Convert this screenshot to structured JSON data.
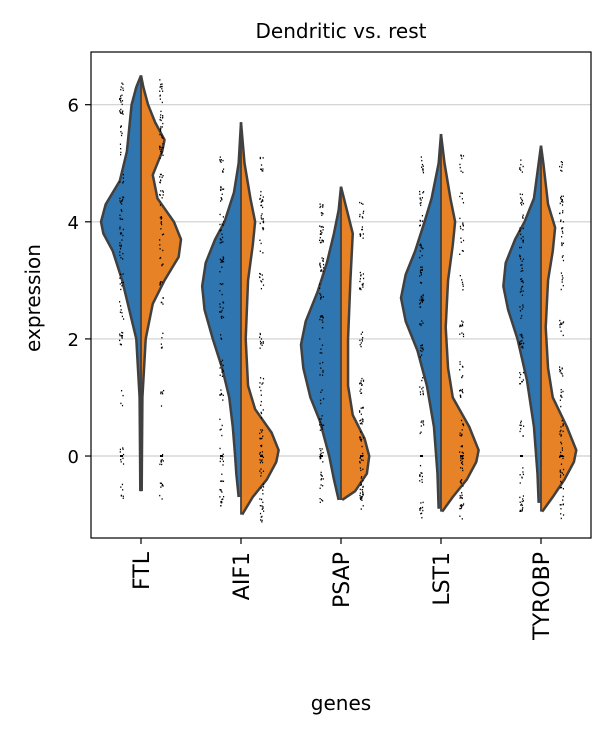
{
  "chart_data": {
    "type": "violin",
    "title": "Dendritic vs. rest",
    "xlabel": "genes",
    "ylabel": "expression",
    "ylim": [
      -1.4,
      6.9
    ],
    "yticks": [
      0,
      2,
      4,
      6
    ],
    "grid": "horizontal",
    "categories": [
      "FTL",
      "AIF1",
      "PSAP",
      "LST1",
      "TYROBP"
    ],
    "series_colors": {
      "Dendritic": "#2f75b0",
      "rest": "#e88227"
    },
    "genes": [
      {
        "name": "FTL",
        "Dendritic": {
          "min": -0.6,
          "max": 6.5,
          "mode": 4.0,
          "modeWidth": 0.17,
          "density": [
            [
              -0.6,
              0.003
            ],
            [
              0,
              0.004
            ],
            [
              1.0,
              0.006
            ],
            [
              2.0,
              0.02
            ],
            [
              2.5,
              0.05
            ],
            [
              3.0,
              0.08
            ],
            [
              3.5,
              0.12
            ],
            [
              3.8,
              0.16
            ],
            [
              4.0,
              0.17
            ],
            [
              4.3,
              0.15
            ],
            [
              4.7,
              0.09
            ],
            [
              5.2,
              0.06
            ],
            [
              5.6,
              0.05
            ],
            [
              6.0,
              0.04
            ],
            [
              6.3,
              0.02
            ],
            [
              6.5,
              0.0
            ]
          ]
        },
        "rest": {
          "min": -0.6,
          "max": 6.5,
          "density": [
            [
              -0.6,
              0.003
            ],
            [
              0,
              0.004
            ],
            [
              1.0,
              0.006
            ],
            [
              2.0,
              0.02
            ],
            [
              2.6,
              0.05
            ],
            [
              3.0,
              0.1
            ],
            [
              3.4,
              0.16
            ],
            [
              3.7,
              0.17
            ],
            [
              4.0,
              0.14
            ],
            [
              4.4,
              0.07
            ],
            [
              4.8,
              0.05
            ],
            [
              5.2,
              0.09
            ],
            [
              5.4,
              0.1
            ],
            [
              5.7,
              0.06
            ],
            [
              6.0,
              0.03
            ],
            [
              6.3,
              0.01
            ],
            [
              6.5,
              0.0
            ]
          ]
        }
      },
      {
        "name": "AIF1",
        "Dendritic": {
          "min": -0.7,
          "max": 5.7,
          "density": [
            [
              -0.7,
              0.01
            ],
            [
              -0.3,
              0.02
            ],
            [
              0,
              0.025
            ],
            [
              0.5,
              0.035
            ],
            [
              1.0,
              0.05
            ],
            [
              1.5,
              0.08
            ],
            [
              2.0,
              0.12
            ],
            [
              2.5,
              0.155
            ],
            [
              2.9,
              0.165
            ],
            [
              3.3,
              0.15
            ],
            [
              3.7,
              0.11
            ],
            [
              4.0,
              0.07
            ],
            [
              4.5,
              0.03
            ],
            [
              5.0,
              0.01
            ],
            [
              5.7,
              0.0
            ]
          ]
        },
        "rest": {
          "min": -1.0,
          "max": 5.7,
          "density": [
            [
              -1.0,
              0.005
            ],
            [
              -0.7,
              0.05
            ],
            [
              -0.4,
              0.11
            ],
            [
              -0.1,
              0.15
            ],
            [
              0.1,
              0.16
            ],
            [
              0.4,
              0.13
            ],
            [
              0.8,
              0.06
            ],
            [
              1.2,
              0.03
            ],
            [
              2.0,
              0.02
            ],
            [
              3.0,
              0.03
            ],
            [
              3.6,
              0.05
            ],
            [
              4.0,
              0.06
            ],
            [
              4.4,
              0.04
            ],
            [
              5.0,
              0.015
            ],
            [
              5.7,
              0.0
            ]
          ]
        }
      },
      {
        "name": "PSAP",
        "Dendritic": {
          "min": -0.75,
          "max": 4.6,
          "density": [
            [
              -0.75,
              0.01
            ],
            [
              -0.4,
              0.03
            ],
            [
              0,
              0.05
            ],
            [
              0.6,
              0.09
            ],
            [
              1.0,
              0.13
            ],
            [
              1.5,
              0.16
            ],
            [
              1.9,
              0.17
            ],
            [
              2.3,
              0.15
            ],
            [
              2.8,
              0.1
            ],
            [
              3.3,
              0.06
            ],
            [
              3.8,
              0.03
            ],
            [
              4.2,
              0.01
            ],
            [
              4.6,
              0.0
            ]
          ]
        },
        "rest": {
          "min": -0.75,
          "max": 4.6,
          "density": [
            [
              -0.75,
              0.005
            ],
            [
              -0.6,
              0.06
            ],
            [
              -0.3,
              0.11
            ],
            [
              0,
              0.12
            ],
            [
              0.3,
              0.1
            ],
            [
              0.7,
              0.05
            ],
            [
              1.2,
              0.03
            ],
            [
              2.0,
              0.03
            ],
            [
              3.0,
              0.04
            ],
            [
              3.8,
              0.05
            ],
            [
              4.2,
              0.025
            ],
            [
              4.6,
              0.0
            ]
          ]
        }
      },
      {
        "name": "LST1",
        "Dendritic": {
          "min": -0.9,
          "max": 5.5,
          "density": [
            [
              -0.9,
              0.01
            ],
            [
              -0.3,
              0.015
            ],
            [
              0.5,
              0.03
            ],
            [
              1.2,
              0.06
            ],
            [
              1.8,
              0.1
            ],
            [
              2.3,
              0.15
            ],
            [
              2.7,
              0.17
            ],
            [
              3.1,
              0.15
            ],
            [
              3.5,
              0.11
            ],
            [
              4.0,
              0.07
            ],
            [
              4.4,
              0.04
            ],
            [
              5.0,
              0.01
            ],
            [
              5.5,
              0.0
            ]
          ]
        },
        "rest": {
          "min": -0.95,
          "max": 5.5,
          "density": [
            [
              -0.95,
              0.005
            ],
            [
              -0.7,
              0.05
            ],
            [
              -0.4,
              0.11
            ],
            [
              -0.1,
              0.15
            ],
            [
              0.1,
              0.16
            ],
            [
              0.5,
              0.12
            ],
            [
              1.0,
              0.05
            ],
            [
              1.5,
              0.03
            ],
            [
              2.2,
              0.02
            ],
            [
              3.0,
              0.03
            ],
            [
              3.6,
              0.05
            ],
            [
              4.0,
              0.06
            ],
            [
              4.4,
              0.04
            ],
            [
              5.0,
              0.015
            ],
            [
              5.5,
              0.0
            ]
          ]
        }
      },
      {
        "name": "TYROBP",
        "Dendritic": {
          "min": -0.8,
          "max": 5.3,
          "density": [
            [
              -0.8,
              0.01
            ],
            [
              -0.3,
              0.015
            ],
            [
              0.5,
              0.03
            ],
            [
              1.3,
              0.06
            ],
            [
              2.0,
              0.1
            ],
            [
              2.5,
              0.14
            ],
            [
              2.9,
              0.16
            ],
            [
              3.3,
              0.15
            ],
            [
              3.7,
              0.11
            ],
            [
              4.0,
              0.07
            ],
            [
              4.4,
              0.03
            ],
            [
              5.0,
              0.01
            ],
            [
              5.3,
              0.0
            ]
          ]
        },
        "rest": {
          "min": -0.95,
          "max": 5.3,
          "density": [
            [
              -0.95,
              0.005
            ],
            [
              -0.7,
              0.05
            ],
            [
              -0.4,
              0.1
            ],
            [
              -0.1,
              0.14
            ],
            [
              0.1,
              0.15
            ],
            [
              0.5,
              0.11
            ],
            [
              1.0,
              0.05
            ],
            [
              1.5,
              0.03
            ],
            [
              2.2,
              0.02
            ],
            [
              3.0,
              0.03
            ],
            [
              3.5,
              0.05
            ],
            [
              3.9,
              0.06
            ],
            [
              4.3,
              0.03
            ],
            [
              5.0,
              0.01
            ],
            [
              5.3,
              0.0
            ]
          ]
        }
      }
    ]
  }
}
